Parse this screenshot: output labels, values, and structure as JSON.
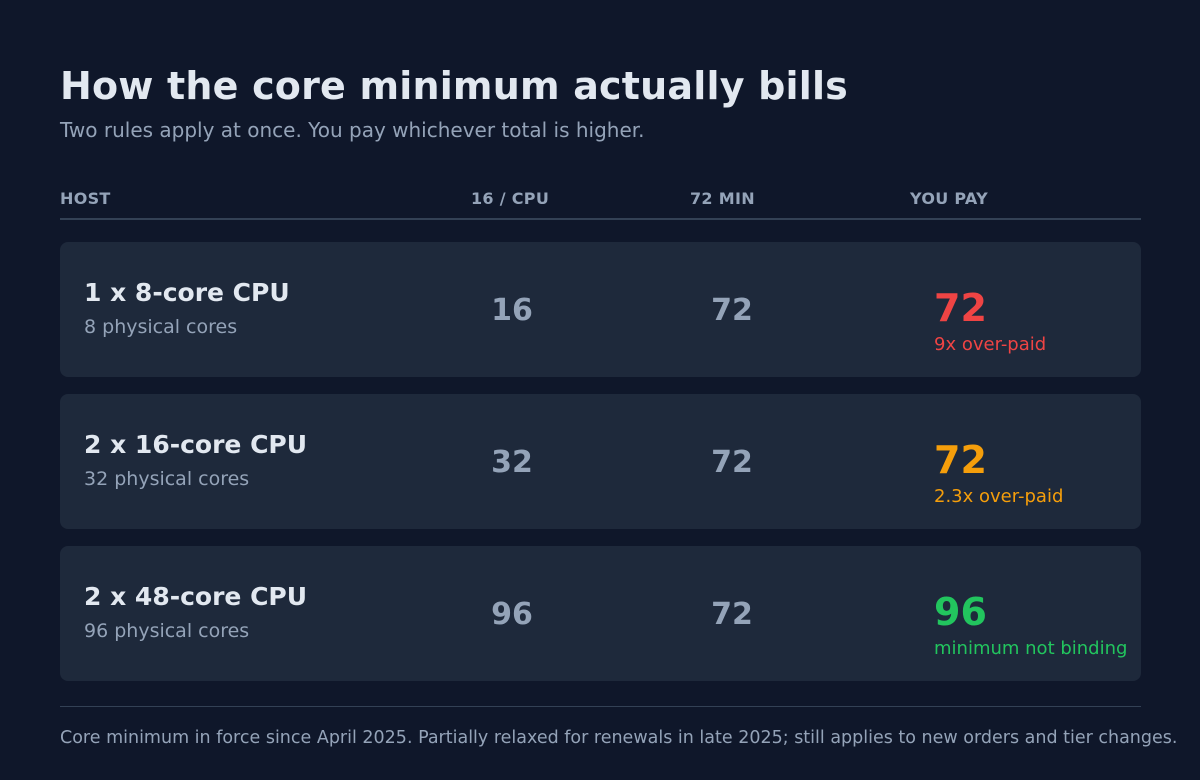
{
  "header": {
    "title": "How the core minimum actually bills",
    "subtitle": "Two rules apply at once. You pay whichever total is higher."
  },
  "columns": {
    "host": "HOST",
    "per_cpu": "16 / CPU",
    "minimum": "72 MIN",
    "you_pay": "YOU PAY"
  },
  "rows": [
    {
      "host": "1 x 8-core CPU",
      "cores": "8 physical cores",
      "per_cpu": "16",
      "minimum": "72",
      "pay": "72",
      "note": "9x over-paid",
      "color": "#ef4444"
    },
    {
      "host": "2 x 16-core CPU",
      "cores": "32 physical cores",
      "per_cpu": "32",
      "minimum": "72",
      "pay": "72",
      "note": "2.3x over-paid",
      "color": "#f59e0b"
    },
    {
      "host": "2 x 48-core CPU",
      "cores": "96 physical cores",
      "per_cpu": "96",
      "minimum": "72",
      "pay": "96",
      "note": "minimum not binding",
      "color": "#22c55e"
    }
  ],
  "footer": "Core minimum in force since April 2025. Partially relaxed for renewals in late 2025; still applies to new orders and tier changes."
}
